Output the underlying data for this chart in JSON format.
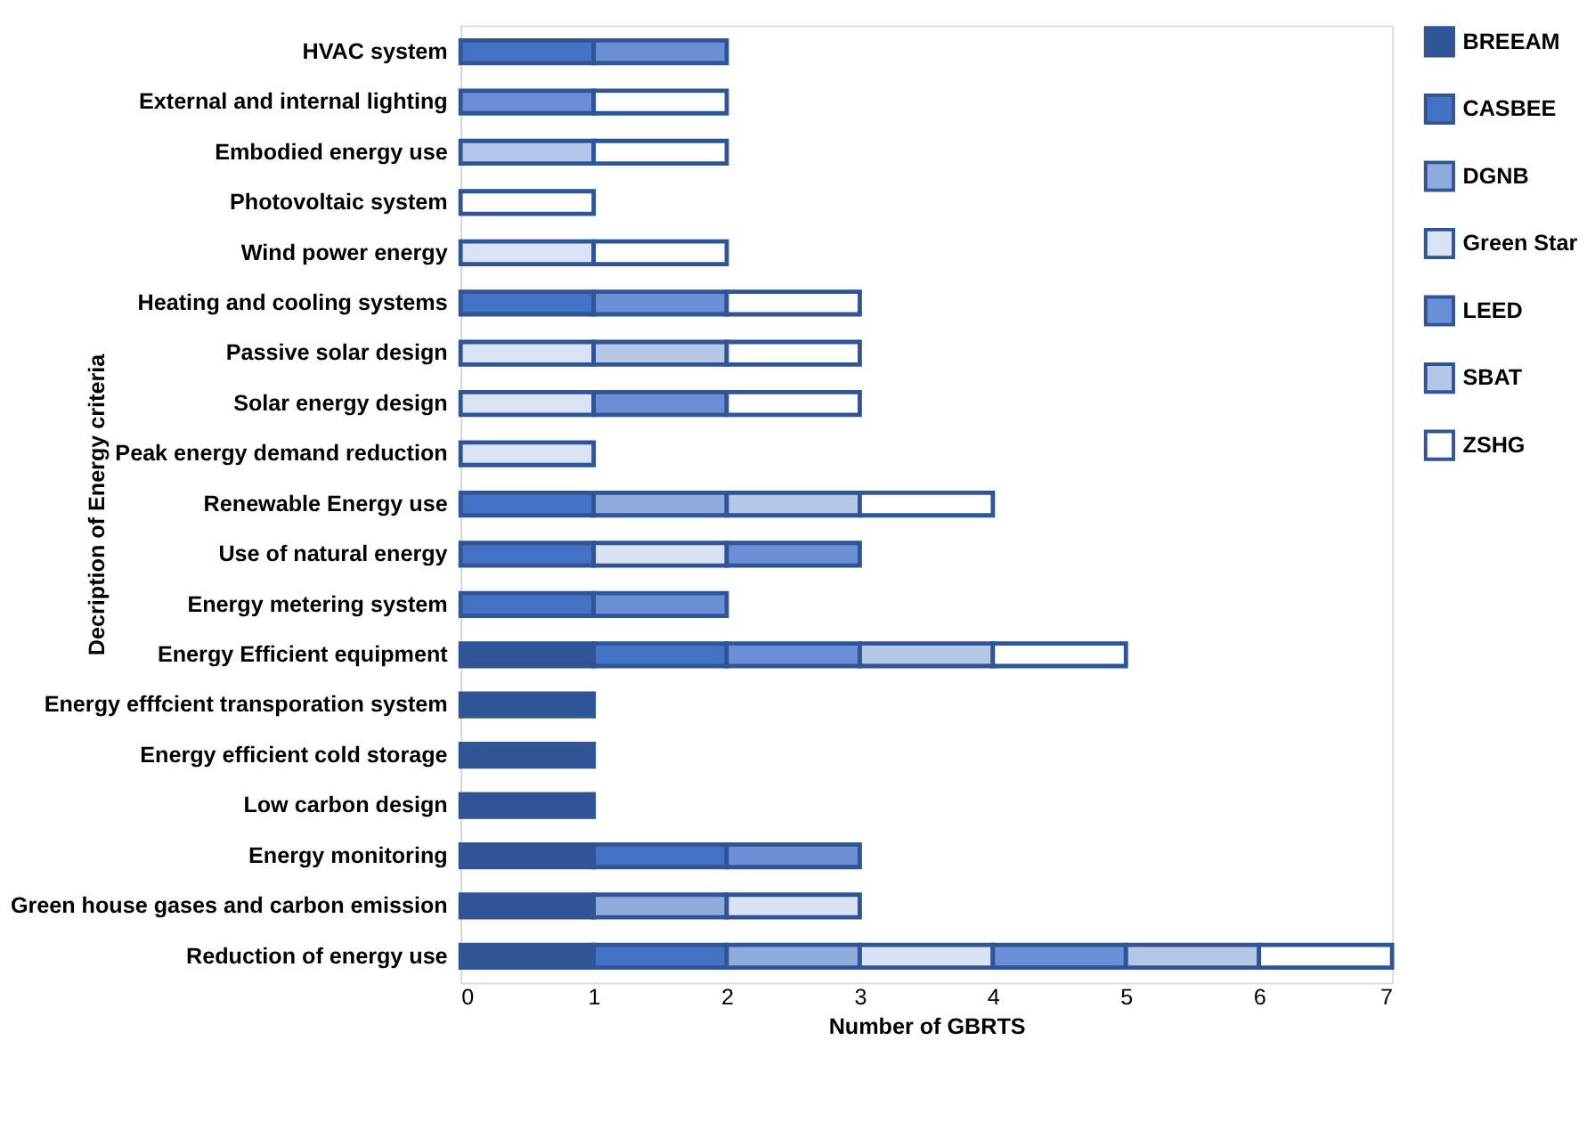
{
  "chart_data": {
    "type": "bar",
    "orientation": "horizontal",
    "stacked": true,
    "xlabel": "Number of GBRTS",
    "ylabel": "Decription of Energy criteria",
    "categories": [
      "HVAC system",
      "External and internal lighting",
      "Embodied energy use",
      "Photovoltaic system",
      "Wind power energy",
      "Heating and cooling systems",
      "Passive solar design",
      "Solar energy design",
      "Peak energy demand reduction",
      "Renewable Energy use",
      "Use of natural energy",
      "Energy metering system",
      "Energy Efficient equipment",
      "Energy efffcient transporation system",
      "Energy efficient cold storage",
      "Low carbon design",
      "Energy monitoring",
      "Green house gases and carbon emission",
      "Reduction of energy use"
    ],
    "series": [
      {
        "name": "BREEAM",
        "color": "#2f5597",
        "values": [
          null,
          null,
          null,
          null,
          null,
          null,
          null,
          null,
          null,
          null,
          null,
          null,
          1,
          1,
          1,
          1,
          1,
          1,
          1
        ]
      },
      {
        "name": "CASBEE",
        "color": "#4472c4",
        "values": [
          1,
          null,
          null,
          null,
          null,
          1,
          null,
          null,
          null,
          1,
          1,
          1,
          1,
          null,
          null,
          null,
          1,
          null,
          1
        ]
      },
      {
        "name": "DGNB",
        "color": "#8faadc",
        "values": [
          null,
          null,
          null,
          null,
          null,
          null,
          null,
          null,
          null,
          1,
          null,
          null,
          null,
          null,
          null,
          null,
          null,
          1,
          1
        ]
      },
      {
        "name": "Green Star",
        "color": "#dae3f3",
        "values": [
          null,
          null,
          null,
          null,
          1,
          null,
          1,
          1,
          1,
          null,
          1,
          null,
          null,
          null,
          null,
          null,
          null,
          1,
          1
        ]
      },
      {
        "name": "LEED",
        "color": "#6b8fd6",
        "values": [
          1,
          1,
          null,
          null,
          null,
          1,
          null,
          1,
          null,
          null,
          1,
          1,
          1,
          null,
          null,
          null,
          1,
          null,
          1
        ]
      },
      {
        "name": "SBAT",
        "color": "#b4c7e7",
        "values": [
          null,
          null,
          1,
          null,
          null,
          null,
          1,
          null,
          null,
          1,
          null,
          null,
          1,
          null,
          null,
          null,
          null,
          null,
          1
        ]
      },
      {
        "name": "ZSHG",
        "color": "#ffffff",
        "values": [
          null,
          1,
          1,
          1,
          1,
          1,
          1,
          1,
          null,
          1,
          null,
          null,
          1,
          null,
          null,
          null,
          null,
          null,
          1
        ]
      }
    ],
    "xlim": [
      0,
      7
    ],
    "xticks": [
      0,
      1,
      2,
      3,
      4,
      5,
      6,
      7
    ],
    "grid": false,
    "legend": "right"
  }
}
